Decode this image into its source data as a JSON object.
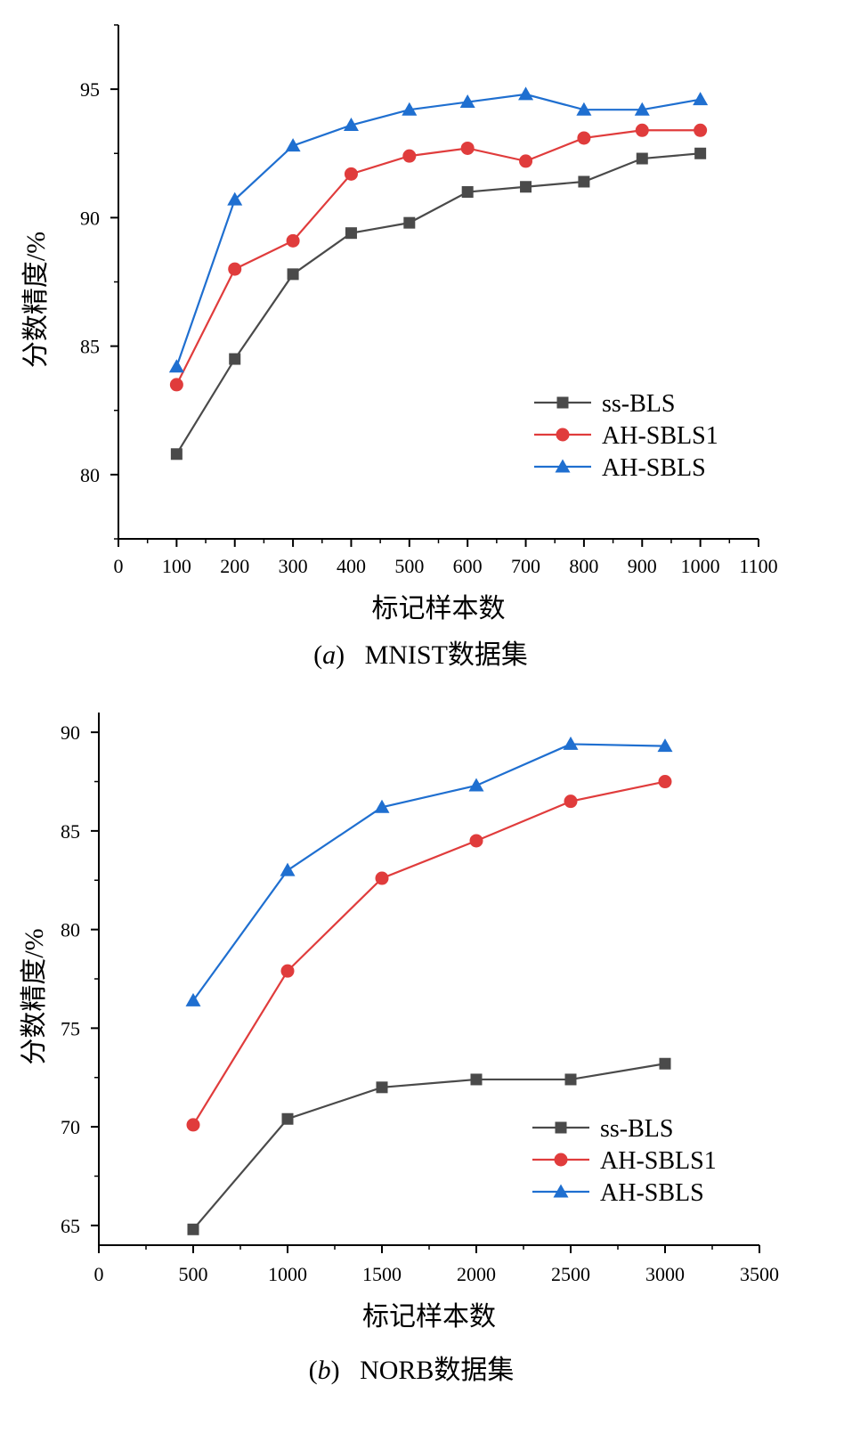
{
  "chart_data": [
    {
      "type": "line",
      "caption": {
        "letter": "a",
        "text": "MNIST数据集"
      },
      "xlabel": "标记样本数",
      "ylabel": "分数精度/%",
      "xlim": [
        0,
        1100
      ],
      "ylim": [
        77.5,
        97.5
      ],
      "xticks": [
        0,
        100,
        200,
        300,
        400,
        500,
        600,
        700,
        800,
        900,
        1000,
        1100
      ],
      "yticks": [
        80,
        85,
        90,
        95
      ],
      "x": [
        100,
        200,
        300,
        400,
        500,
        600,
        700,
        800,
        900,
        1000
      ],
      "legend_position": "bottom-right",
      "series": [
        {
          "name": "ss-BLS",
          "color": "#4a4a4a",
          "marker": "square",
          "values": [
            80.8,
            84.5,
            87.8,
            89.4,
            89.8,
            91.0,
            91.2,
            91.4,
            92.3,
            92.5
          ]
        },
        {
          "name": "AH-SBLS1",
          "color": "#e03c3c",
          "marker": "circle",
          "values": [
            83.5,
            88.0,
            89.1,
            91.7,
            92.4,
            92.7,
            92.2,
            93.1,
            93.4,
            93.4
          ]
        },
        {
          "name": "AH-SBLS",
          "color": "#1f6fd0",
          "marker": "triangle",
          "values": [
            84.2,
            90.7,
            92.8,
            93.6,
            94.2,
            94.5,
            94.8,
            94.2,
            94.2,
            94.6
          ]
        }
      ]
    },
    {
      "type": "line",
      "caption": {
        "letter": "b",
        "text": "NORB数据集"
      },
      "xlabel": "标记样本数",
      "ylabel": "分数精度/%",
      "xlim": [
        0,
        3500
      ],
      "ylim": [
        64,
        91
      ],
      "xticks": [
        0,
        500,
        1000,
        1500,
        2000,
        2500,
        3000,
        3500
      ],
      "yticks": [
        65,
        70,
        75,
        80,
        85,
        90
      ],
      "x": [
        500,
        1000,
        1500,
        2000,
        2500,
        3000
      ],
      "legend_position": "bottom-right",
      "series": [
        {
          "name": "ss-BLS",
          "color": "#4a4a4a",
          "marker": "square",
          "values": [
            64.8,
            70.4,
            72.0,
            72.4,
            72.4,
            73.2
          ]
        },
        {
          "name": "AH-SBLS1",
          "color": "#e03c3c",
          "marker": "circle",
          "values": [
            70.1,
            77.9,
            82.6,
            84.5,
            86.5,
            87.5
          ]
        },
        {
          "name": "AH-SBLS",
          "color": "#1f6fd0",
          "marker": "triangle",
          "values": [
            76.4,
            83.0,
            86.2,
            87.3,
            89.4,
            89.3
          ]
        }
      ]
    }
  ]
}
